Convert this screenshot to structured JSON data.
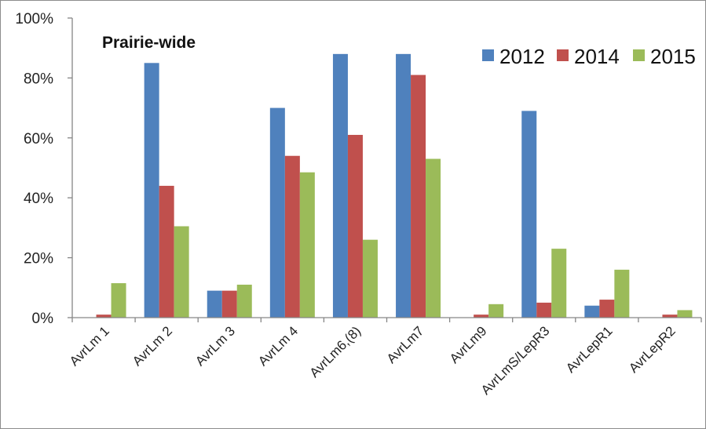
{
  "chart_data": {
    "type": "bar",
    "title": "Prairie-wide",
    "xlabel": "",
    "ylabel": "",
    "ylim": [
      0,
      100
    ],
    "yticks": [
      "0%",
      "20%",
      "40%",
      "60%",
      "80%",
      "100%"
    ],
    "ytick_values": [
      0,
      20,
      40,
      60,
      80,
      100
    ],
    "grid": false,
    "legend_position": "top-right",
    "categories": [
      "AvrLm 1",
      "AvrLm 2",
      "AvrLm 3",
      "AvrLm 4",
      "AvrLm6,(8)",
      "AvrLm7",
      "AvrLm9",
      "AvrLmS/LepR3",
      "AvrLepR1",
      "AvrLepR2"
    ],
    "series": [
      {
        "name": "2012",
        "color": "#4f81bd",
        "values": [
          0,
          85,
          9,
          70,
          88,
          88,
          0,
          69,
          4,
          0
        ]
      },
      {
        "name": "2014",
        "color": "#c0504d",
        "values": [
          1,
          44,
          9,
          54,
          61,
          81,
          1,
          5,
          6,
          1
        ]
      },
      {
        "name": "2015",
        "color": "#9bbb59",
        "values": [
          11.5,
          30.5,
          11,
          48.5,
          26,
          53,
          4.5,
          23,
          16,
          2.5
        ]
      }
    ]
  }
}
